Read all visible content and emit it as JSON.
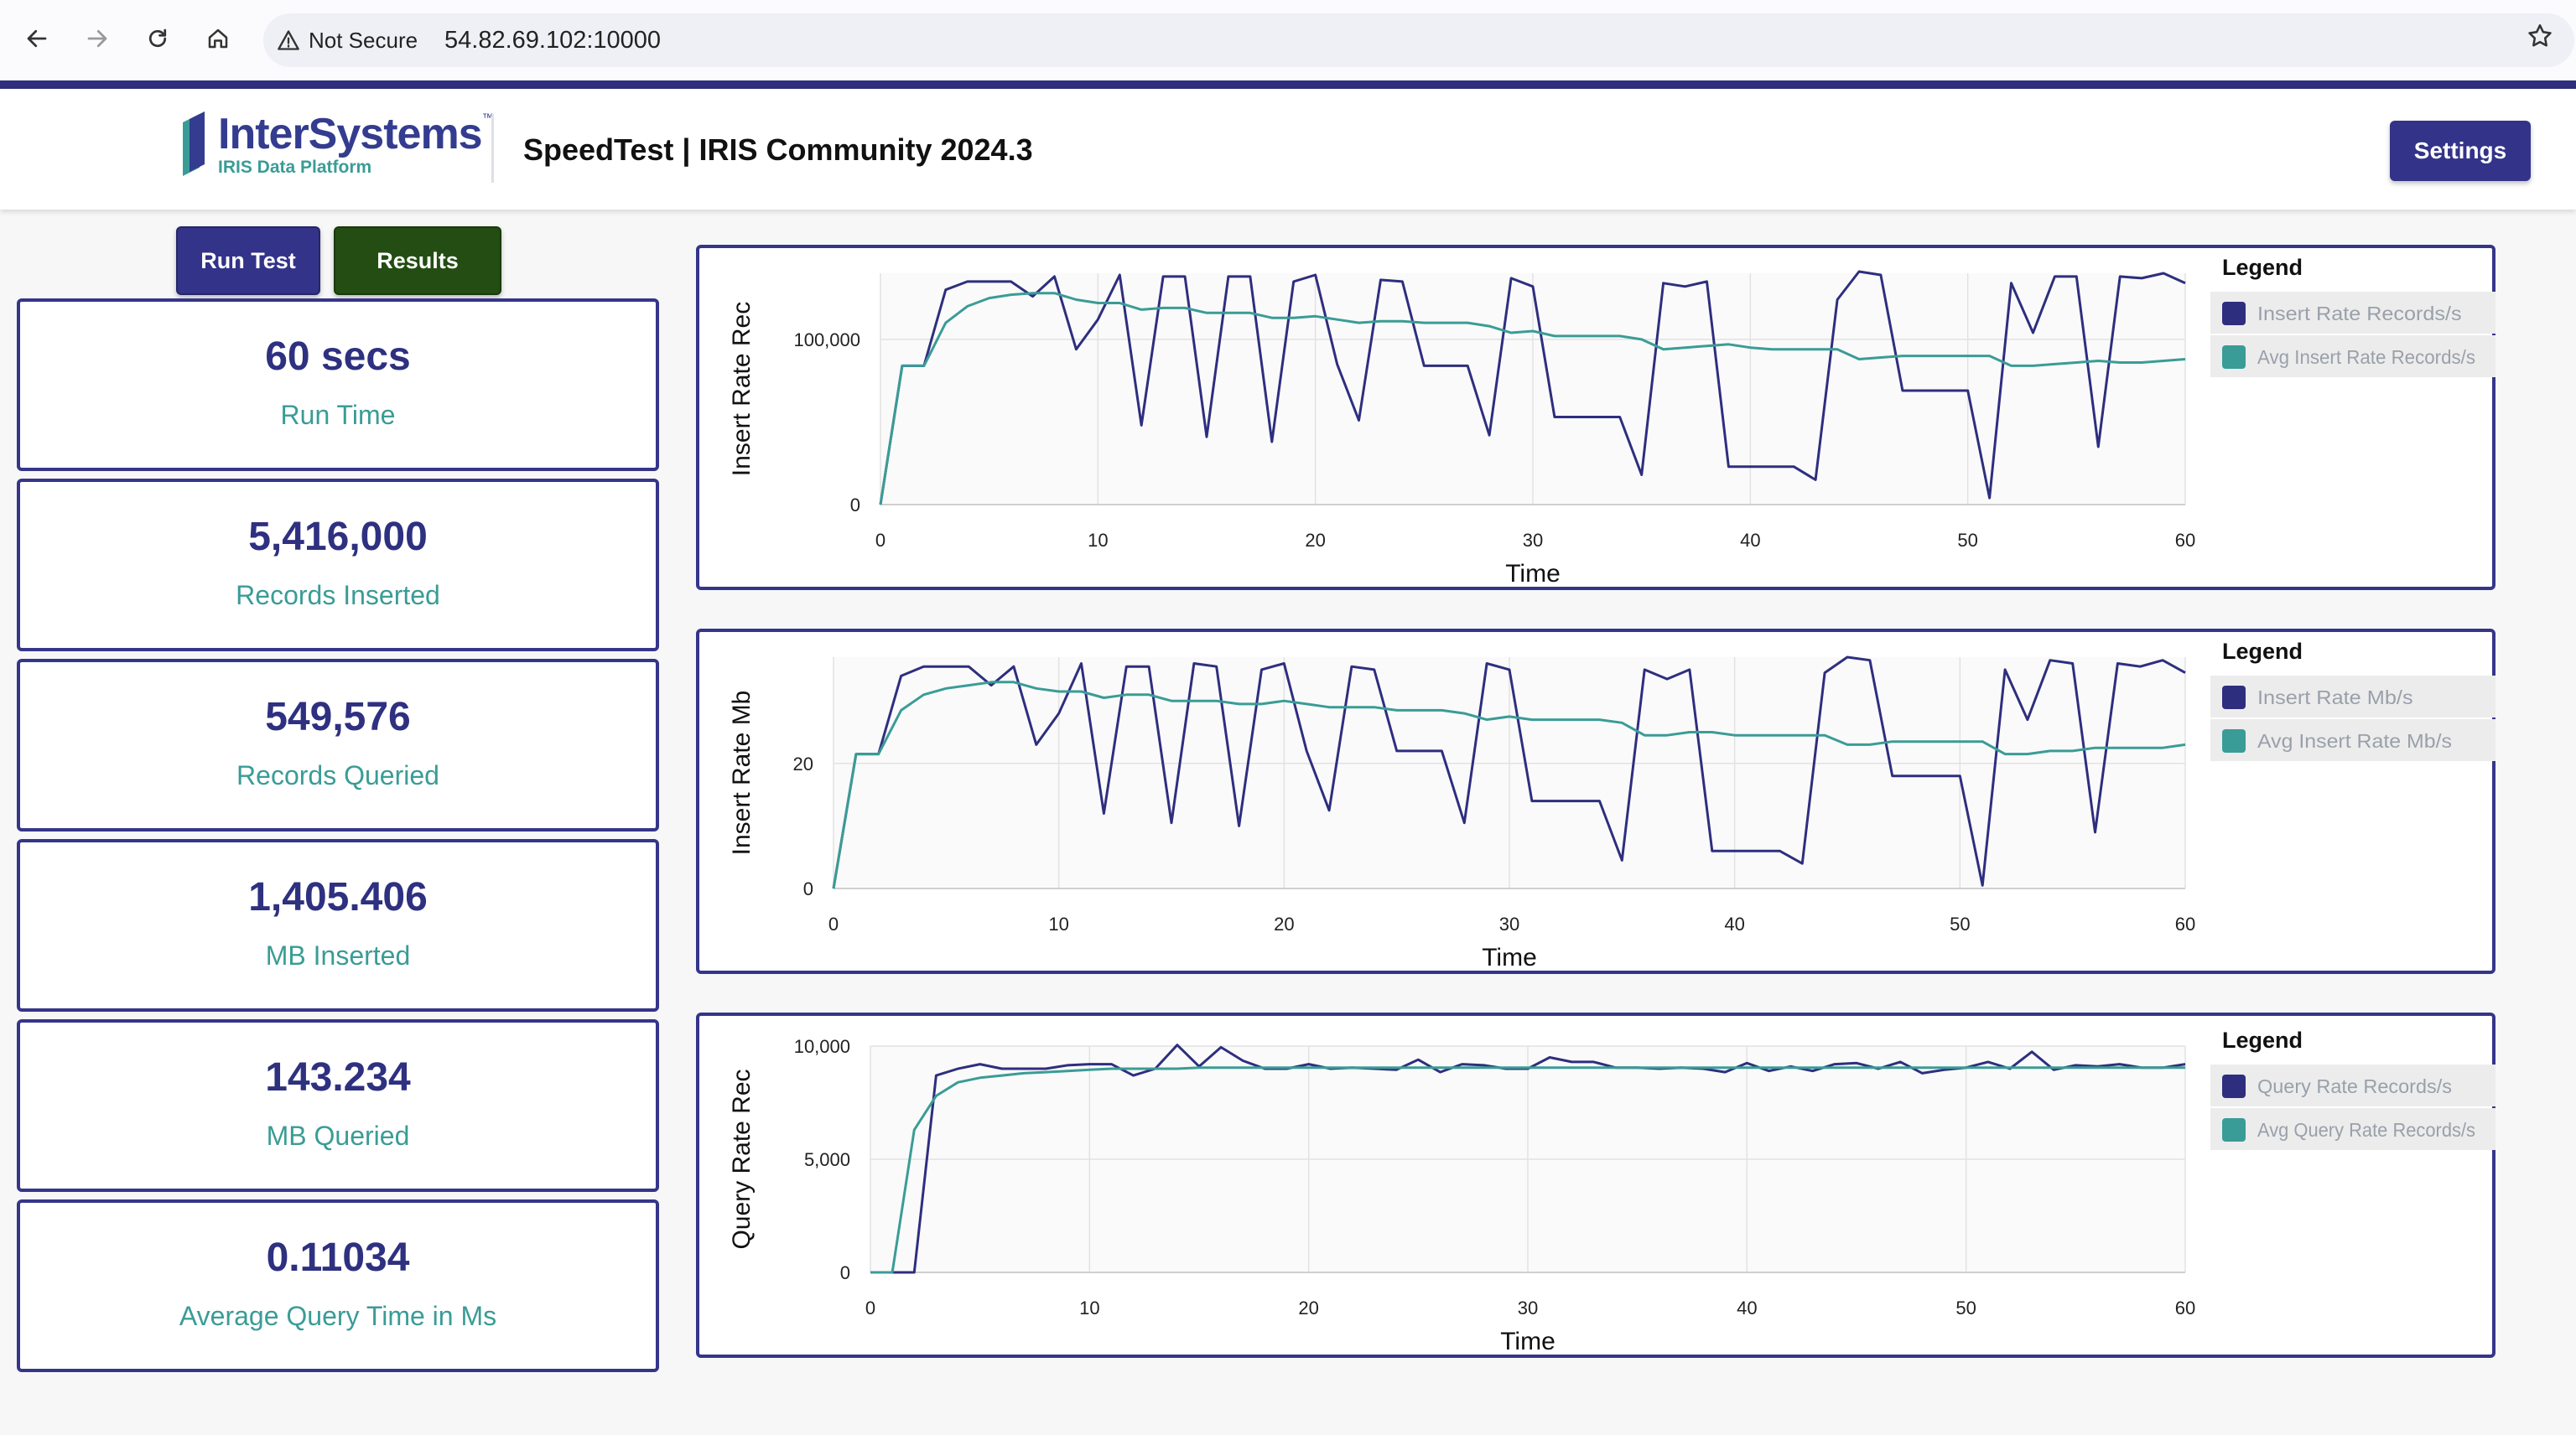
{
  "browser": {
    "security_label": "Not Secure",
    "url": "54.82.69.102:10000"
  },
  "header": {
    "logo_name": "InterSystems",
    "logo_tm": "™",
    "logo_subtitle": "IRIS Data Platform",
    "title": "SpeedTest | IRIS Community 2024.3",
    "settings_label": "Settings"
  },
  "controls": {
    "run_test_label": "Run Test",
    "results_label": "Results"
  },
  "stats": [
    {
      "value": "60 secs",
      "label": "Run Time"
    },
    {
      "value": "5,416,000",
      "label": "Records Inserted"
    },
    {
      "value": "549,576",
      "label": "Records Queried"
    },
    {
      "value": "1,405.406",
      "label": "MB Inserted"
    },
    {
      "value": "143.234",
      "label": "MB Queried"
    },
    {
      "value": "0.11034",
      "label": "Average Query Time in Ms"
    }
  ],
  "colors": {
    "primary": "#2e2e7f",
    "teal": "#3a9c96",
    "results_green": "#234d12"
  },
  "chart_data": [
    {
      "type": "line",
      "ylabel": "Insert Rate Rec",
      "xlabel": "Time",
      "xlim": [
        0,
        60
      ],
      "ylim": [
        0,
        140000
      ],
      "xticks": [
        "0",
        "10",
        "20",
        "30",
        "40",
        "50",
        "60"
      ],
      "yticks": [
        {
          "v": 0,
          "label": "0"
        },
        {
          "v": 100000,
          "label": "100,000"
        }
      ],
      "legend_title": "Legend",
      "legend_position": "right",
      "x": [
        0,
        1,
        2,
        3,
        4,
        5,
        6,
        7,
        8,
        9,
        10,
        11,
        12,
        13,
        14,
        15,
        16,
        17,
        18,
        19,
        20,
        21,
        22,
        23,
        24,
        25,
        26,
        27,
        28,
        29,
        30,
        31,
        32,
        33,
        34,
        35,
        36,
        37,
        38,
        39,
        40,
        41,
        42,
        43,
        44,
        45,
        46,
        47,
        48,
        49,
        50,
        51,
        52,
        53,
        54,
        55,
        56,
        57,
        58,
        59,
        60
      ],
      "series": [
        {
          "name": "Insert Rate Records/s",
          "color": "#2e2e7f",
          "values": [
            0,
            84000,
            84000,
            130000,
            135000,
            135000,
            135000,
            126000,
            138000,
            94000,
            112000,
            139000,
            48000,
            138000,
            138000,
            41000,
            138000,
            138000,
            38000,
            135000,
            139000,
            85000,
            51000,
            136000,
            135000,
            84000,
            84000,
            84000,
            42000,
            137000,
            132000,
            53000,
            53000,
            53000,
            53000,
            18000,
            134000,
            132000,
            135000,
            23000,
            23000,
            23000,
            23000,
            15000,
            124000,
            141000,
            139000,
            69000,
            69000,
            69000,
            69000,
            4000,
            134000,
            104000,
            138000,
            138000,
            35000,
            138000,
            137000,
            140000,
            134000
          ]
        },
        {
          "name": "Avg Insert Rate Records/s",
          "color": "#3a9c96",
          "values": [
            0,
            84000,
            84000,
            110000,
            120000,
            125000,
            127000,
            128000,
            128000,
            124000,
            122000,
            122000,
            118000,
            119000,
            119000,
            116000,
            116000,
            116000,
            113000,
            113000,
            114000,
            112000,
            110000,
            111000,
            111000,
            110000,
            110000,
            110000,
            108000,
            104000,
            105000,
            102000,
            102000,
            102000,
            102000,
            100000,
            94000,
            95000,
            96000,
            97000,
            95000,
            94000,
            94000,
            94000,
            94000,
            88000,
            89000,
            90000,
            90000,
            90000,
            90000,
            90000,
            84000,
            84000,
            85000,
            86000,
            87000,
            86000,
            86000,
            87000,
            88000
          ]
        }
      ]
    },
    {
      "type": "line",
      "ylabel": "Insert Rate Mb",
      "xlabel": "Time",
      "xlim": [
        0,
        60
      ],
      "ylim": [
        0,
        37
      ],
      "xticks": [
        "0",
        "10",
        "20",
        "30",
        "40",
        "50",
        "60"
      ],
      "yticks": [
        {
          "v": 0,
          "label": "0"
        },
        {
          "v": 20,
          "label": "20"
        }
      ],
      "legend_title": "Legend",
      "legend_position": "right",
      "x": [
        0,
        1,
        2,
        3,
        4,
        5,
        6,
        7,
        8,
        9,
        10,
        11,
        12,
        13,
        14,
        15,
        16,
        17,
        18,
        19,
        20,
        21,
        22,
        23,
        24,
        25,
        26,
        27,
        28,
        29,
        30,
        31,
        32,
        33,
        34,
        35,
        36,
        37,
        38,
        39,
        40,
        41,
        42,
        43,
        44,
        45,
        46,
        47,
        48,
        49,
        50,
        51,
        52,
        53,
        54,
        55,
        56,
        57,
        58,
        59,
        60
      ],
      "series": [
        {
          "name": "Insert Rate Mb/s",
          "color": "#2e2e7f",
          "values": [
            0,
            21.5,
            21.5,
            34,
            35.5,
            35.5,
            35.5,
            32.5,
            35.5,
            23,
            28,
            36,
            12,
            35.5,
            35.5,
            10.5,
            36,
            35.5,
            10,
            35,
            36,
            22,
            12.5,
            35.5,
            35,
            22,
            22,
            22,
            10.5,
            36,
            35,
            14,
            14,
            14,
            14,
            4.5,
            35,
            33.5,
            35,
            6,
            6,
            6,
            6,
            4,
            34.5,
            37,
            36.5,
            18,
            18,
            18,
            18,
            0.5,
            35,
            27,
            36.5,
            36,
            9,
            36,
            35.5,
            36.5,
            34.5
          ]
        },
        {
          "name": "Avg Insert Rate Mb/s",
          "color": "#3a9c96",
          "values": [
            0,
            21.5,
            21.5,
            28.5,
            31,
            32,
            32.5,
            33,
            33,
            32,
            31.5,
            31.5,
            30.5,
            31,
            31,
            30,
            30,
            30,
            29.5,
            29.5,
            30,
            29.5,
            29,
            29,
            29,
            28.5,
            28.5,
            28.5,
            28,
            27,
            27.5,
            27,
            27,
            27,
            27,
            26.5,
            24.5,
            24.5,
            25,
            25,
            24.5,
            24.5,
            24.5,
            24.5,
            24.5,
            23,
            23,
            23.5,
            23.5,
            23.5,
            23.5,
            23.5,
            21.5,
            21.5,
            22,
            22,
            22.5,
            22.5,
            22.5,
            22.5,
            23
          ]
        }
      ]
    },
    {
      "type": "line",
      "ylabel": "Query Rate Rec",
      "xlabel": "Time",
      "xlim": [
        0,
        60
      ],
      "ylim": [
        0,
        10000
      ],
      "xticks": [
        "0",
        "10",
        "20",
        "30",
        "40",
        "50",
        "60"
      ],
      "yticks": [
        {
          "v": 0,
          "label": "0"
        },
        {
          "v": 5000,
          "label": "5,000"
        },
        {
          "v": 10000,
          "label": "10,000"
        }
      ],
      "legend_title": "Legend",
      "legend_position": "right",
      "x": [
        0,
        1,
        2,
        3,
        4,
        5,
        6,
        7,
        8,
        9,
        10,
        11,
        12,
        13,
        14,
        15,
        16,
        17,
        18,
        19,
        20,
        21,
        22,
        23,
        24,
        25,
        26,
        27,
        28,
        29,
        30,
        31,
        32,
        33,
        34,
        35,
        36,
        37,
        38,
        39,
        40,
        41,
        42,
        43,
        44,
        45,
        46,
        47,
        48,
        49,
        50,
        51,
        52,
        53,
        54,
        55,
        56,
        57,
        58,
        59,
        60
      ],
      "series": [
        {
          "name": "Query Rate Records/s",
          "color": "#2e2e7f",
          "values": [
            0,
            0,
            0,
            8700,
            9000,
            9200,
            9000,
            9000,
            9000,
            9150,
            9200,
            9200,
            8700,
            9000,
            10050,
            9100,
            9950,
            9350,
            9000,
            9000,
            9200,
            9000,
            9050,
            9000,
            8950,
            9400,
            8850,
            9200,
            9150,
            9000,
            9000,
            9500,
            9300,
            9300,
            9050,
            9050,
            9000,
            9050,
            9000,
            8850,
            9250,
            8900,
            9100,
            8900,
            9200,
            9250,
            9000,
            9300,
            8800,
            8950,
            9050,
            9300,
            9000,
            9750,
            8950,
            9150,
            9100,
            9200,
            9050,
            9050,
            9200
          ]
        },
        {
          "name": "Avg Query Rate Records/s",
          "color": "#3a9c96",
          "values": [
            0,
            0,
            6300,
            7800,
            8400,
            8600,
            8700,
            8800,
            8850,
            8900,
            8950,
            9000,
            9000,
            9000,
            9000,
            9050,
            9050,
            9050,
            9050,
            9050,
            9050,
            9050,
            9050,
            9050,
            9050,
            9050,
            9050,
            9050,
            9050,
            9050,
            9050,
            9050,
            9050,
            9050,
            9050,
            9050,
            9050,
            9050,
            9050,
            9050,
            9050,
            9050,
            9050,
            9050,
            9050,
            9050,
            9050,
            9050,
            9050,
            9050,
            9050,
            9050,
            9050,
            9050,
            9050,
            9050,
            9050,
            9050,
            9050,
            9050,
            9050
          ]
        }
      ]
    }
  ]
}
